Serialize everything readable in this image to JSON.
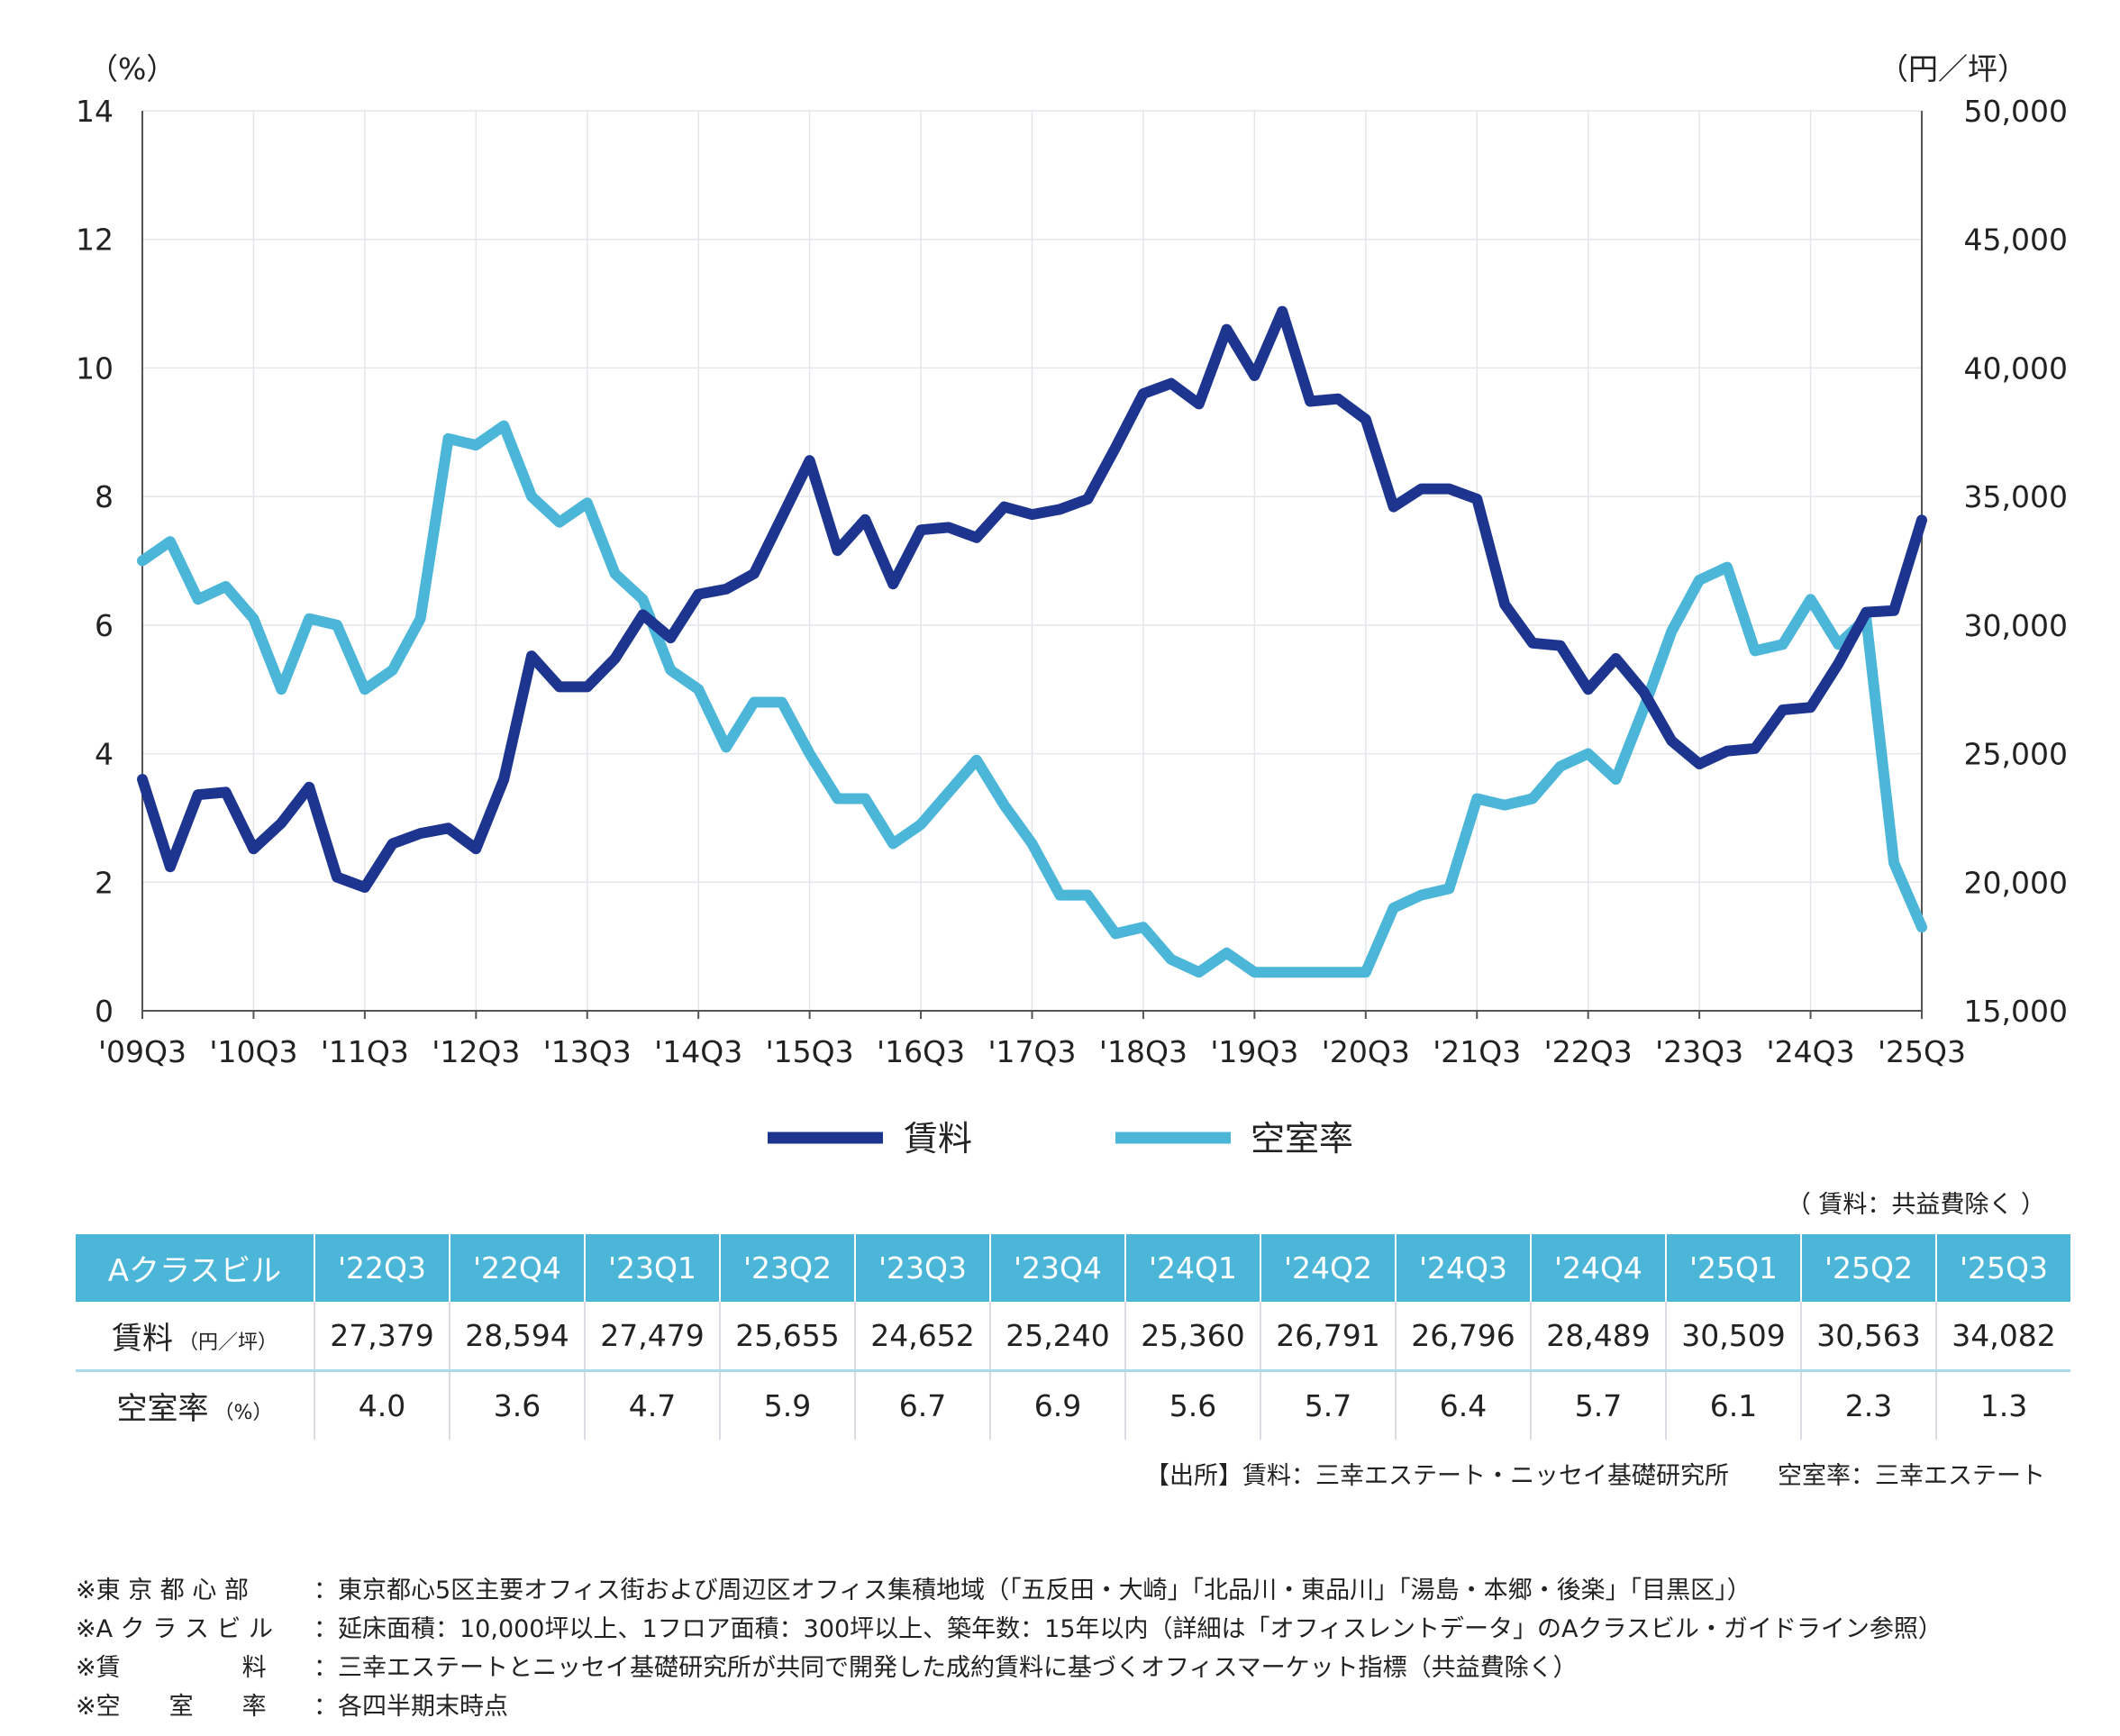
{
  "chart_data": {
    "type": "line",
    "y_left_unit": "（%）",
    "y_right_unit": "（円／坪）",
    "y_left_range": [
      0,
      14
    ],
    "y_right_range": [
      15000,
      50000
    ],
    "y_left_ticks": [
      "0",
      "2",
      "4",
      "6",
      "8",
      "10",
      "12",
      "14"
    ],
    "y_right_ticks": [
      "15,000",
      "20,000",
      "25,000",
      "30,000",
      "35,000",
      "40,000",
      "45,000",
      "50,000"
    ],
    "x_tick_labels": [
      "'09Q3",
      "'10Q3",
      "'11Q3",
      "'12Q3",
      "'13Q3",
      "'14Q3",
      "'15Q3",
      "'16Q3",
      "'17Q3",
      "'18Q3",
      "'19Q3",
      "'20Q3",
      "'21Q3",
      "'22Q3",
      "'23Q3",
      "'24Q3",
      "'25Q3"
    ],
    "x_start": "'09Q3",
    "x_end": "'25Q3",
    "grid": true,
    "legend_position": "bottom",
    "series": [
      {
        "name": "賃料",
        "axis": "right",
        "color": "#1e3590",
        "values": [
          24000,
          20600,
          23400,
          23500,
          21300,
          22300,
          23700,
          20200,
          19800,
          21500,
          21900,
          22100,
          21300,
          24000,
          28800,
          27600,
          27600,
          28700,
          30400,
          29500,
          31200,
          31400,
          32000,
          34200,
          36400,
          32900,
          34100,
          31600,
          33700,
          33800,
          33400,
          34600,
          34300,
          34500,
          34900,
          36900,
          39000,
          39400,
          38600,
          41500,
          39700,
          42200,
          38700,
          38800,
          38000,
          34600,
          35300,
          35300,
          34900,
          30800,
          29300,
          29200,
          27500,
          28700,
          27400,
          25500,
          24600,
          25100,
          25200,
          26700,
          26800,
          28500,
          30500,
          30563,
          34082
        ]
      },
      {
        "name": "空室率",
        "axis": "left",
        "color": "#4cb6d8",
        "values": [
          7.0,
          7.3,
          6.4,
          6.6,
          6.1,
          5.0,
          6.1,
          6.0,
          5.0,
          5.3,
          6.1,
          8.9,
          8.8,
          9.1,
          8.0,
          7.6,
          7.9,
          6.8,
          6.4,
          5.3,
          5.0,
          4.1,
          4.8,
          4.8,
          4.0,
          3.3,
          3.3,
          2.6,
          2.9,
          3.4,
          3.9,
          3.2,
          2.6,
          1.8,
          1.8,
          1.2,
          1.3,
          0.8,
          0.6,
          0.9,
          0.6,
          0.6,
          0.6,
          0.6,
          0.6,
          1.6,
          1.8,
          1.9,
          3.3,
          3.2,
          3.3,
          3.8,
          4.0,
          3.6,
          4.7,
          5.9,
          6.7,
          6.9,
          5.6,
          5.7,
          6.4,
          5.7,
          6.1,
          2.3,
          1.3
        ]
      }
    ]
  },
  "table": {
    "header_label": "Aクラスビル",
    "periods": [
      "'22Q3",
      "'22Q4",
      "'23Q1",
      "'23Q2",
      "'23Q3",
      "'23Q4",
      "'24Q1",
      "'24Q2",
      "'24Q3",
      "'24Q4",
      "'25Q1",
      "'25Q2",
      "'25Q3"
    ],
    "rent_label": "賃料",
    "rent_unit": "（円／坪）",
    "rent_values": [
      "27,379",
      "28,594",
      "27,479",
      "25,655",
      "24,652",
      "25,240",
      "25,360",
      "26,791",
      "26,796",
      "28,489",
      "30,509",
      "30,563",
      "34,082"
    ],
    "vacancy_label": "空室率",
    "vacancy_unit": "（%）",
    "vacancy_values": [
      "4.0",
      "3.6",
      "4.7",
      "5.9",
      "6.7",
      "6.9",
      "5.6",
      "5.7",
      "6.4",
      "5.7",
      "6.1",
      "2.3",
      "1.3"
    ]
  },
  "table_note": "（ 賃料：共益費除く ）",
  "source_note": "【出所】賃料：三幸エステート・ニッセイ基礎研究所　　空室率：三幸エステート",
  "footnotes": [
    {
      "key": "※東 京 都 心 部",
      "text": "：東京都心5区主要オフィス街および周辺区オフィス集積地域（「五反田・大崎」「北品川・東品川」「湯島・本郷・後楽」「目黒区」）"
    },
    {
      "key": "※A ク ラ ス ビ ル",
      "text": "：延床面積：10,000坪以上、1フロア面積：300坪以上、築年数：15年以内（詳細は「オフィスレントデータ」のAクラスビル・ガイドライン参照）"
    },
    {
      "key": "※賃　　　　　料",
      "text": "：三幸エステートとニッセイ基礎研究所が共同で開発した成約賃料に基づくオフィスマーケット指標（共益費除く）"
    },
    {
      "key": "※空　　室　　率",
      "text": "：各四半期末時点"
    }
  ]
}
